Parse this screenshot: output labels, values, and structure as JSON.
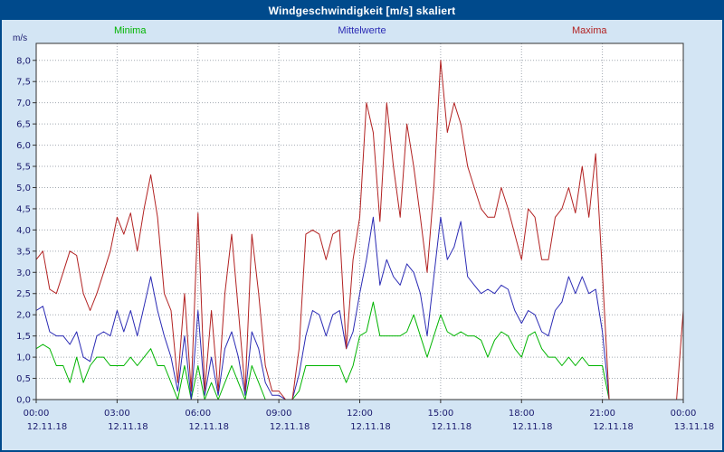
{
  "window": {
    "title": "Windgeschwindigkeit [m/s] skaliert",
    "titlebar_color": "#004a8c",
    "background_color": "#d3e5f4",
    "border_color": "#004a8c"
  },
  "chart_data": {
    "type": "line",
    "title": "Windgeschwindigkeit [m/s] skaliert",
    "xlabel": "",
    "ylabel": "m/s",
    "ylim": [
      0,
      8.4
    ],
    "ytick_step": 0.5,
    "ytick_labels": [
      "0,0",
      "0,5",
      "1,0",
      "1,5",
      "2,0",
      "2,5",
      "3,0",
      "3,5",
      "4,0",
      "4,5",
      "5,0",
      "5,5",
      "6,0",
      "6,5",
      "7,0",
      "7,5",
      "8,0"
    ],
    "grid": true,
    "legend_position": "top",
    "x_minutes_step": 15,
    "x_count": 97,
    "xtick_positions": [
      0,
      12,
      24,
      36,
      48,
      60,
      72,
      84,
      96
    ],
    "xtick_time_labels": [
      "00:00",
      "03:00",
      "06:00",
      "09:00",
      "12:00",
      "15:00",
      "18:00",
      "21:00",
      "00:00"
    ],
    "xtick_date_labels": [
      "12.11.18",
      "12.11.18",
      "12.11.18",
      "12.11.18",
      "12.11.18",
      "12.11.18",
      "12.11.18",
      "12.11.18",
      "13.11.18"
    ],
    "series": [
      {
        "name": "Minima",
        "color": "#00b400",
        "values": [
          1.2,
          1.3,
          1.2,
          0.8,
          0.8,
          0.4,
          1.0,
          0.4,
          0.8,
          1.0,
          1.0,
          0.8,
          0.8,
          0.8,
          1.0,
          0.8,
          1.0,
          1.2,
          0.8,
          0.8,
          0.4,
          0.0,
          0.8,
          0.0,
          0.8,
          0.0,
          0.4,
          0.0,
          0.4,
          0.8,
          0.4,
          0.0,
          0.8,
          0.4,
          0.0,
          0.0,
          0.0,
          0.0,
          0.0,
          0.2,
          0.8,
          0.8,
          0.8,
          0.8,
          0.8,
          0.8,
          0.4,
          0.8,
          1.5,
          1.6,
          2.3,
          1.5,
          1.5,
          1.5,
          1.5,
          1.6,
          2.0,
          1.5,
          1.0,
          1.5,
          2.0,
          1.6,
          1.5,
          1.6,
          1.5,
          1.5,
          1.4,
          1.0,
          1.4,
          1.6,
          1.5,
          1.2,
          1.0,
          1.5,
          1.6,
          1.2,
          1.0,
          1.0,
          0.8,
          1.0,
          0.8,
          1.0,
          0.8,
          0.8,
          0.8,
          0.0,
          0.0,
          0.0,
          0.0,
          0.0,
          0.0,
          0.0,
          0.0,
          0.0,
          0.0,
          0.0,
          0.0
        ]
      },
      {
        "name": "Mittelwerte",
        "color": "#2a2ab4",
        "values": [
          2.1,
          2.2,
          1.6,
          1.5,
          1.5,
          1.3,
          1.6,
          1.0,
          0.9,
          1.5,
          1.6,
          1.5,
          2.1,
          1.6,
          2.1,
          1.5,
          2.2,
          2.9,
          2.1,
          1.5,
          1.0,
          0.2,
          1.5,
          0.0,
          2.1,
          0.1,
          1.0,
          0.1,
          1.2,
          1.6,
          1.0,
          0.1,
          1.6,
          1.2,
          0.4,
          0.1,
          0.1,
          0.0,
          0.0,
          0.6,
          1.5,
          2.1,
          2.0,
          1.5,
          2.0,
          2.1,
          1.2,
          1.6,
          2.5,
          3.3,
          4.3,
          2.7,
          3.3,
          2.9,
          2.7,
          3.2,
          3.0,
          2.5,
          1.5,
          2.9,
          4.3,
          3.3,
          3.6,
          4.2,
          2.9,
          2.7,
          2.5,
          2.6,
          2.5,
          2.7,
          2.6,
          2.1,
          1.8,
          2.1,
          2.0,
          1.6,
          1.5,
          2.1,
          2.3,
          2.9,
          2.5,
          2.9,
          2.5,
          2.6,
          1.6,
          0.0,
          0.0,
          0.0,
          0.0,
          0.0,
          0.0,
          0.0,
          0.0,
          0.0,
          0.0,
          0.0,
          0.0
        ]
      },
      {
        "name": "Maxima",
        "color": "#b22222",
        "values": [
          3.3,
          3.5,
          2.6,
          2.5,
          3.0,
          3.5,
          3.4,
          2.5,
          2.1,
          2.5,
          3.0,
          3.5,
          4.3,
          3.9,
          4.4,
          3.5,
          4.5,
          5.3,
          4.3,
          2.5,
          2.1,
          0.4,
          2.5,
          0.2,
          4.4,
          0.2,
          2.1,
          0.2,
          2.5,
          3.9,
          2.1,
          0.2,
          3.9,
          2.5,
          0.8,
          0.2,
          0.2,
          0.0,
          0.0,
          1.2,
          3.9,
          4.0,
          3.9,
          3.3,
          3.9,
          4.0,
          1.2,
          3.3,
          4.3,
          7.0,
          6.3,
          4.2,
          7.0,
          5.5,
          4.3,
          6.5,
          5.5,
          4.3,
          3.0,
          5.0,
          8.0,
          6.3,
          7.0,
          6.5,
          5.5,
          5.0,
          4.5,
          4.3,
          4.3,
          5.0,
          4.5,
          3.9,
          3.3,
          4.5,
          4.3,
          3.3,
          3.3,
          4.3,
          4.5,
          5.0,
          4.4,
          5.5,
          4.3,
          5.8,
          3.0,
          0.0,
          0.0,
          0.0,
          0.0,
          0.0,
          0.0,
          0.0,
          0.0,
          0.0,
          0.0,
          0.0,
          2.1
        ]
      }
    ]
  }
}
